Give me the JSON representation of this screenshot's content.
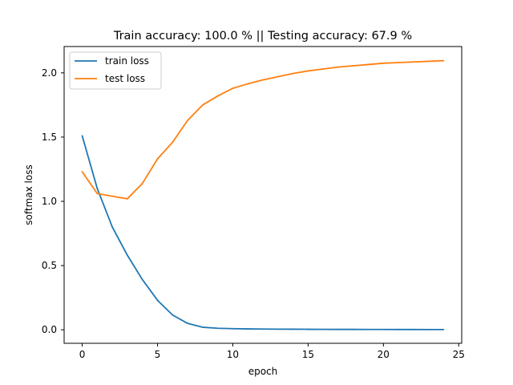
{
  "chart_data": {
    "type": "line",
    "title": "Train accuracy: 100.0 %  ||  Testing accuracy: 67.9 %",
    "xlabel": "epoch",
    "ylabel": "softmax loss",
    "xlim": [
      -1.2,
      25.2
    ],
    "ylim": [
      -0.105,
      2.205
    ],
    "xticks": [
      0,
      5,
      10,
      15,
      20,
      25
    ],
    "yticks": [
      0.0,
      0.5,
      1.0,
      1.5,
      2.0
    ],
    "xtick_labels": [
      "0",
      "5",
      "10",
      "15",
      "20",
      "25"
    ],
    "ytick_labels": [
      "0.0",
      "0.5",
      "1.0",
      "1.5",
      "2.0"
    ],
    "grid": false,
    "legend_position": "top-left",
    "x": [
      0,
      1,
      2,
      3,
      4,
      5,
      6,
      7,
      8,
      9,
      10,
      11,
      12,
      13,
      14,
      15,
      16,
      17,
      18,
      19,
      20,
      21,
      22,
      23,
      24
    ],
    "series": [
      {
        "name": "train loss",
        "color": "#1f77b4",
        "values": [
          1.51,
          1.1,
          0.8,
          0.58,
          0.39,
          0.23,
          0.115,
          0.05,
          0.02,
          0.012,
          0.009,
          0.007,
          0.006,
          0.005,
          0.0045,
          0.004,
          0.0035,
          0.003,
          0.003,
          0.0028,
          0.0025,
          0.0023,
          0.0022,
          0.0021,
          0.002
        ]
      },
      {
        "name": "test loss",
        "color": "#ff7f0e",
        "values": [
          1.23,
          1.06,
          1.04,
          1.02,
          1.14,
          1.33,
          1.46,
          1.63,
          1.75,
          1.82,
          1.88,
          1.915,
          1.945,
          1.97,
          1.995,
          2.015,
          2.03,
          2.045,
          2.055,
          2.065,
          2.075,
          2.08,
          2.085,
          2.09,
          2.095
        ]
      }
    ]
  }
}
